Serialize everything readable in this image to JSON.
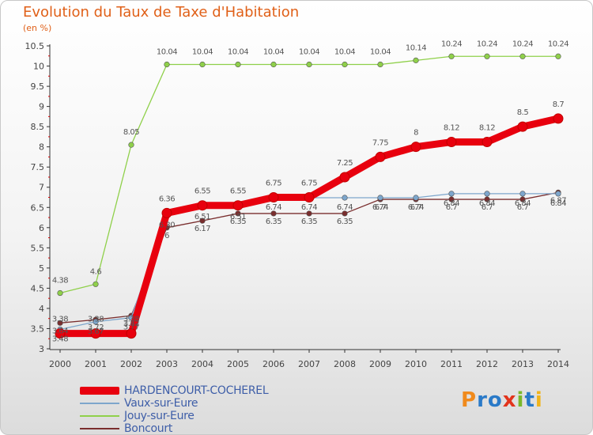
{
  "header": {
    "title": "Evolution du Taux de Taxe d'Habitation",
    "unit": "(en %)"
  },
  "logo": {
    "text": "Proxiti",
    "colors": [
      "#f08a1c",
      "#2a7ac8",
      "#2a7ac8",
      "#e2341c",
      "#7ab82a",
      "#2a7ac8",
      "#f0b41c"
    ]
  },
  "chart_data": {
    "type": "line",
    "title": "Evolution du Taux de Taxe d'Habitation",
    "ylabel": "(en %)",
    "xlabel": "",
    "x": [
      "2000",
      "2001",
      "2002",
      "2003",
      "2004",
      "2005",
      "2006",
      "2007",
      "2008",
      "2009",
      "2010",
      "2011",
      "2012",
      "2013",
      "2014"
    ],
    "ylim": [
      3,
      10.5
    ],
    "yticks": [
      "3",
      "3.5",
      "4",
      "4.5",
      "5",
      "5.5",
      "6",
      "6.5",
      "7",
      "7.5",
      "8",
      "8.5",
      "9",
      "9.5",
      "10",
      "10.5"
    ],
    "grid": false,
    "legend_position": "bottom-left",
    "series": [
      {
        "name": "HARDENCOURT-COCHEREL",
        "color": "#e8000e",
        "values": [
          3.38,
          3.38,
          3.38,
          6.36,
          6.55,
          6.55,
          6.75,
          6.75,
          7.25,
          7.75,
          8,
          8.12,
          8.12,
          8.5,
          8.7
        ],
        "labels": [
          "3.38",
          "3.38",
          "3.38",
          "6.36",
          "6.55",
          "6.55",
          "6.75",
          "6.75",
          "7.25",
          "7.75",
          "8",
          "8.12",
          "8.12",
          "8.5",
          "8.7"
        ]
      },
      {
        "name": "Vaux-sur-Eure",
        "color": "#7da6cc",
        "values": [
          3.48,
          3.67,
          3.77,
          6.3,
          6.51,
          6.51,
          6.74,
          6.74,
          6.74,
          6.74,
          6.74,
          6.84,
          6.84,
          6.84,
          6.84
        ],
        "labels": [
          "3.48",
          "3.67",
          "3.77",
          "6.30",
          "6.51",
          "6.51",
          "6.74",
          "6.74",
          "6.74",
          "6.74",
          "6.74",
          "6.84",
          "6.84",
          "6.84",
          "6.84"
        ]
      },
      {
        "name": "Jouy-sur-Eure",
        "color": "#8fd04a",
        "values": [
          4.38,
          4.6,
          8.05,
          10.04,
          10.04,
          10.04,
          10.04,
          10.04,
          10.04,
          10.04,
          10.14,
          10.24,
          10.24,
          10.24,
          10.24
        ],
        "labels": [
          "4.38",
          "4.6",
          "8.05",
          "10.04",
          "10.04",
          "10.04",
          "10.04",
          "10.04",
          "10.04",
          "10.04",
          "10.14",
          "10.24",
          "10.24",
          "10.24",
          "10.24"
        ]
      },
      {
        "name": "Boncourt",
        "color": "#7a2e2e",
        "values": [
          3.64,
          3.72,
          3.82,
          6.0,
          6.17,
          6.35,
          6.35,
          6.35,
          6.35,
          6.7,
          6.7,
          6.7,
          6.7,
          6.7,
          6.87
        ],
        "labels": [
          "3.64",
          "3.72",
          "3.82",
          "6",
          "6.17",
          "6.35",
          "6.35",
          "6.35",
          "6.35",
          "6.7",
          "6.7",
          "6.7",
          "6.7",
          "6.7",
          "6.87"
        ]
      }
    ]
  }
}
